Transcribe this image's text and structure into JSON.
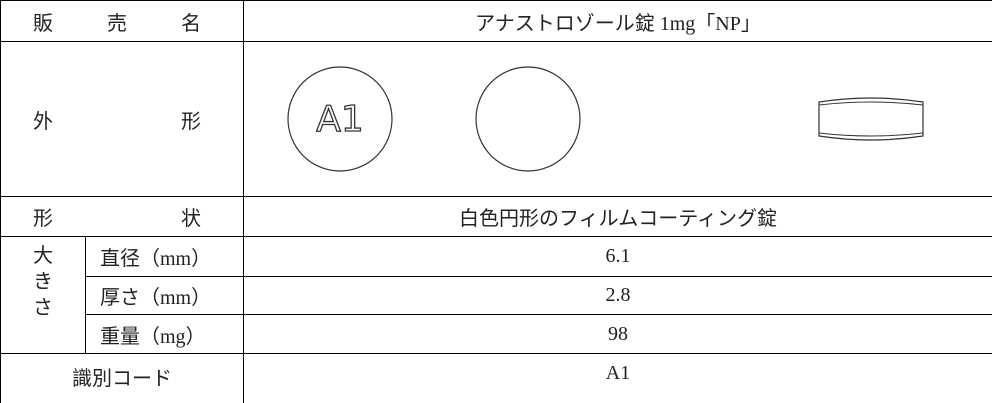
{
  "name_row": {
    "label": "販 売 名",
    "value": "アナストロゾール錠 1mg「NP」"
  },
  "appearance": {
    "label": "外 形",
    "imprint": "A1"
  },
  "shape": {
    "label": "形 状",
    "value": "白色円形のフィルムコーティング錠"
  },
  "size": {
    "label": "大きさ",
    "items": [
      {
        "label": "直径（mm）",
        "value": "6.1"
      },
      {
        "label": "厚さ（mm）",
        "value": "2.8"
      },
      {
        "label": "重量（mg）",
        "value": "98"
      }
    ]
  },
  "code": {
    "label": "識別コード",
    "value": "A1"
  }
}
